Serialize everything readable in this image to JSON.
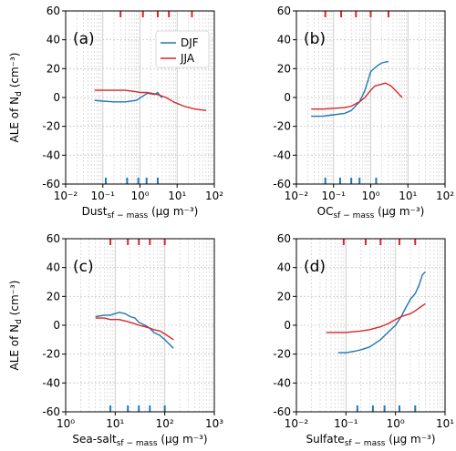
{
  "colors": {
    "djf": "#1f77b4",
    "jja": "#d62728",
    "grid": "#c8c8c8"
  },
  "chart_data": [
    {
      "type": "line",
      "panel_label": "(a)",
      "xscale": "log",
      "xlim": [
        0.01,
        100
      ],
      "ylim": [
        -60,
        60
      ],
      "xticks": [
        0.01,
        0.1,
        1,
        10,
        100
      ],
      "xtick_labels": [
        "10⁻²",
        "10⁻¹",
        "10⁰",
        "10¹",
        "10²"
      ],
      "yticks": [
        -60,
        -40,
        -20,
        0,
        20,
        40,
        60
      ],
      "xlabel_base": "Dust",
      "xlabel_sub": "sf − mass",
      "xlabel_units": " (μg m⁻³)",
      "ylabel": "ALE of N",
      "ylabel_sub": "d",
      "ylabel_units": " (cm⁻³)",
      "grid": true,
      "legend": {
        "placement": "top-right"
      },
      "deciles": {
        "DJF": [
          0.12,
          0.45,
          0.9,
          1.5,
          3.0
        ],
        "JJA": [
          0.3,
          1.2,
          3.0,
          6.0,
          25
        ]
      },
      "series": [
        {
          "name": "DJF",
          "x": [
            0.06,
            0.1,
            0.2,
            0.4,
            0.8,
            1.2,
            1.6,
            2.0,
            2.5,
            3.0,
            3.5,
            4.0
          ],
          "y": [
            -2,
            -2.5,
            -3,
            -3,
            -2,
            1,
            3,
            2.5,
            2,
            3.5,
            1,
            0
          ]
        },
        {
          "name": "JJA",
          "x": [
            0.06,
            0.1,
            0.2,
            0.4,
            0.8,
            1.0,
            1.5,
            2.0,
            3.0,
            5,
            8,
            15,
            30,
            60
          ],
          "y": [
            5,
            5,
            5,
            5,
            4,
            3.5,
            3.5,
            3,
            2,
            0,
            -3,
            -6,
            -8,
            -9
          ]
        }
      ]
    },
    {
      "type": "line",
      "panel_label": "(b)",
      "xscale": "log",
      "xlim": [
        0.01,
        100
      ],
      "ylim": [
        -60,
        60
      ],
      "xticks": [
        0.01,
        0.1,
        1,
        10,
        100
      ],
      "xtick_labels": [
        "10⁻²",
        "10⁻¹",
        "10⁰",
        "10¹",
        "10²"
      ],
      "yticks": [
        -60,
        -40,
        -20,
        0,
        20,
        40,
        60
      ],
      "xlabel_base": "OC",
      "xlabel_sub": "sf − mass",
      "xlabel_units": " (μg m⁻³)",
      "grid": true,
      "deciles": {
        "DJF": [
          0.06,
          0.15,
          0.3,
          0.5,
          1.4
        ],
        "JJA": [
          0.06,
          0.16,
          0.4,
          1.0,
          3.0
        ]
      },
      "series": [
        {
          "name": "DJF",
          "x": [
            0.025,
            0.05,
            0.1,
            0.2,
            0.3,
            0.5,
            0.7,
            0.9,
            1.0,
            1.5,
            2.0,
            3.0
          ],
          "y": [
            -13,
            -13,
            -12,
            -11,
            -9,
            -3,
            5,
            14,
            18,
            22,
            24,
            25
          ]
        },
        {
          "name": "JJA",
          "x": [
            0.025,
            0.05,
            0.1,
            0.2,
            0.3,
            0.5,
            0.7,
            1.0,
            1.3,
            1.8,
            2.5,
            3.5,
            5,
            7
          ],
          "y": [
            -8,
            -8,
            -7.5,
            -7,
            -6,
            -3,
            0,
            5,
            8,
            9,
            10,
            8,
            4,
            0
          ]
        }
      ]
    },
    {
      "type": "line",
      "panel_label": "(c)",
      "xscale": "log",
      "xlim": [
        1,
        1000
      ],
      "ylim": [
        -60,
        60
      ],
      "xticks": [
        1,
        10,
        100,
        1000
      ],
      "xtick_labels": [
        "10⁰",
        "10¹",
        "10²",
        "10³"
      ],
      "yticks": [
        -60,
        -40,
        -20,
        0,
        20,
        40,
        60
      ],
      "xlabel_base": "Sea-salt",
      "xlabel_sub": "sf − mass",
      "xlabel_units": " (μg m⁻³)",
      "ylabel": "ALE of N",
      "ylabel_sub": "d",
      "ylabel_units": " (cm⁻³)",
      "grid": true,
      "deciles": {
        "DJF": [
          8,
          18,
          30,
          50,
          100
        ],
        "JJA": [
          8,
          18,
          30,
          50,
          100
        ]
      },
      "series": [
        {
          "name": "DJF",
          "x": [
            4,
            6,
            8,
            12,
            16,
            20,
            25,
            30,
            40,
            50,
            60,
            80,
            100,
            150
          ],
          "y": [
            6,
            7,
            7,
            9,
            8,
            6,
            5,
            2,
            0,
            -2,
            -5,
            -7,
            -10,
            -16
          ]
        },
        {
          "name": "JJA",
          "x": [
            4,
            6,
            8,
            12,
            16,
            20,
            25,
            30,
            40,
            50,
            60,
            80,
            100,
            150
          ],
          "y": [
            5,
            5,
            4,
            4,
            3,
            2,
            1,
            0,
            -1,
            -2,
            -3,
            -4,
            -6,
            -10
          ]
        }
      ]
    },
    {
      "type": "line",
      "panel_label": "(d)",
      "xscale": "log",
      "xlim": [
        0.01,
        10
      ],
      "ylim": [
        -60,
        60
      ],
      "xticks": [
        0.01,
        0.1,
        1,
        10
      ],
      "xtick_labels": [
        "10⁻²",
        "10⁻¹",
        "10⁰",
        "10¹"
      ],
      "yticks": [
        -60,
        -40,
        -20,
        0,
        20,
        40,
        60
      ],
      "xlabel_base": "Sulfate",
      "xlabel_sub": "sf − mass",
      "xlabel_units": " (μg m⁻³)",
      "grid": true,
      "deciles": {
        "DJF": [
          0.17,
          0.35,
          0.6,
          1.2,
          2.5
        ],
        "JJA": [
          0.09,
          0.25,
          0.5,
          1.2,
          2.5
        ]
      },
      "series": [
        {
          "name": "DJF",
          "x": [
            0.07,
            0.1,
            0.15,
            0.2,
            0.3,
            0.5,
            0.7,
            1.0,
            1.3,
            1.6,
            2.0,
            2.5,
            3.0,
            3.5,
            4.0
          ],
          "y": [
            -19,
            -19,
            -18,
            -17,
            -15,
            -10,
            -5,
            0,
            6,
            12,
            18,
            22,
            28,
            35,
            37
          ]
        },
        {
          "name": "JJA",
          "x": [
            0.04,
            0.07,
            0.1,
            0.2,
            0.3,
            0.5,
            0.7,
            1.0,
            1.3,
            1.6,
            2.0,
            2.5,
            3.0,
            4.0
          ],
          "y": [
            -5,
            -5,
            -5,
            -4,
            -3,
            -1,
            1,
            4,
            6,
            7,
            8,
            10,
            12,
            15
          ]
        }
      ]
    }
  ]
}
